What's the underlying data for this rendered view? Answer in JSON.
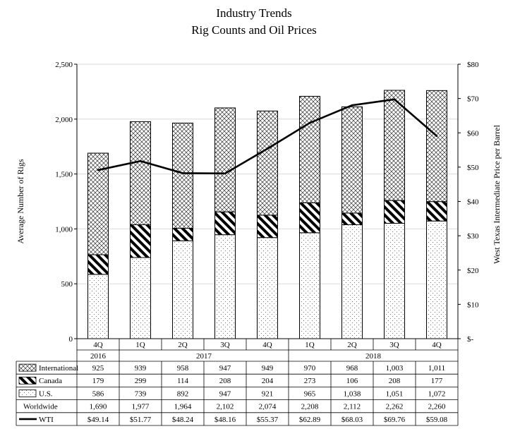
{
  "title_line1": "Industry Trends",
  "title_line2": "Rig Counts and Oil Prices",
  "colors": {
    "bar_outline": "#000000",
    "wti_line": "#000000",
    "grid": "#d9d9d9",
    "background": "#ffffff"
  },
  "chart_data": {
    "type": "bar",
    "stacked": true,
    "title": "Industry Trends Rig Counts and Oil Prices",
    "ylabel": "Average Number of Rigs",
    "y2label": "West Texas Intermediate Price per Barrel",
    "ylim": [
      0,
      2500
    ],
    "y_ticks": [
      0,
      500,
      1000,
      1500,
      2000,
      2500
    ],
    "y_tick_labels": [
      "0",
      "500",
      "1,000",
      "1,500",
      "2,000",
      "2,500"
    ],
    "y2lim": [
      0,
      80
    ],
    "y2_ticks": [
      0,
      10,
      20,
      30,
      40,
      50,
      60,
      70,
      80
    ],
    "y2_tick_labels": [
      "$-",
      "$10",
      "$20",
      "$30",
      "$40",
      "$50",
      "$60",
      "$70",
      "$80"
    ],
    "grid": true,
    "categories": [
      "4Q",
      "1Q",
      "2Q",
      "3Q",
      "4Q",
      "1Q",
      "2Q",
      "3Q",
      "4Q"
    ],
    "year_groups": [
      {
        "label": "2016",
        "start": 0,
        "end": 0
      },
      {
        "label": "2017",
        "start": 1,
        "end": 4
      },
      {
        "label": "2018",
        "start": 5,
        "end": 8
      }
    ],
    "series": [
      {
        "name": "U.S.",
        "pattern": "dots",
        "values": [
          586,
          739,
          892,
          947,
          921,
          965,
          1038,
          1051,
          1072
        ],
        "labels": [
          "586",
          "739",
          "892",
          "947",
          "921",
          "965",
          "1,038",
          "1,051",
          "1,072"
        ]
      },
      {
        "name": "Canada",
        "pattern": "diagonal",
        "values": [
          179,
          299,
          114,
          208,
          204,
          273,
          106,
          208,
          177
        ],
        "labels": [
          "179",
          "299",
          "114",
          "208",
          "204",
          "273",
          "106",
          "208",
          "177"
        ]
      },
      {
        "name": "International",
        "pattern": "crosshatch",
        "values": [
          925,
          939,
          958,
          947,
          949,
          970,
          968,
          1003,
          1011
        ],
        "labels": [
          "925",
          "939",
          "958",
          "947",
          "949",
          "970",
          "968",
          "1,003",
          "1,011"
        ]
      }
    ],
    "worldwide": {
      "name": "Worldwide",
      "values": [
        1690,
        1977,
        1964,
        2102,
        2074,
        2208,
        2112,
        2262,
        2260
      ],
      "labels": [
        "1,690",
        "1,977",
        "1,964",
        "2,102",
        "2,074",
        "2,208",
        "2,112",
        "2,262",
        "2,260"
      ]
    },
    "line_series": {
      "name": "WTI",
      "axis": "right",
      "values": [
        49.14,
        51.77,
        48.24,
        48.16,
        55.37,
        62.89,
        68.03,
        69.76,
        59.08
      ],
      "labels": [
        "$49.14",
        "$51.77",
        "$48.24",
        "$48.16",
        "$55.37",
        "$62.89",
        "$68.03",
        "$69.76",
        "$59.08"
      ]
    }
  }
}
